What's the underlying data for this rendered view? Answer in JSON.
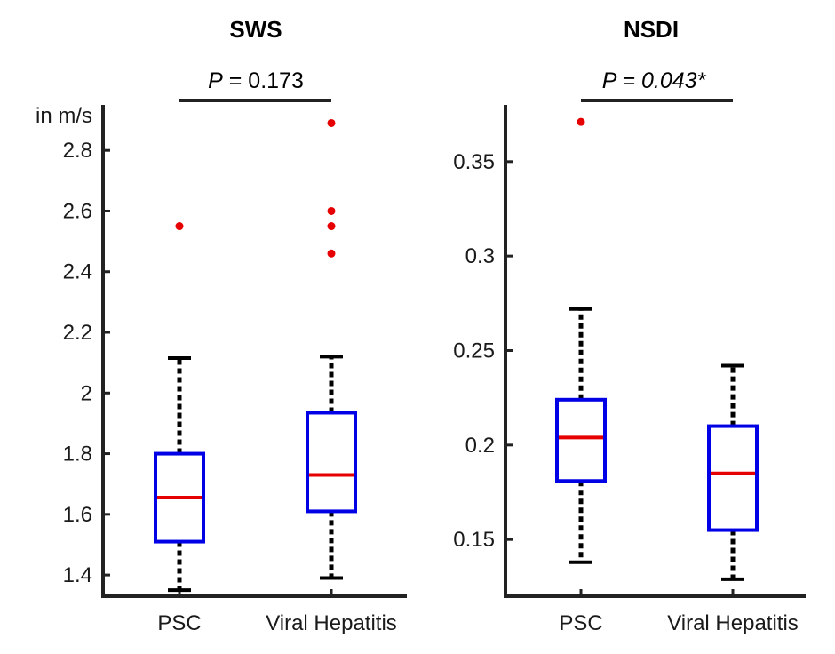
{
  "chart_data": [
    {
      "type": "box",
      "title": "SWS",
      "ylabel": "in m/s",
      "ylim": [
        1.33,
        2.95
      ],
      "yticks": [
        1.4,
        1.6,
        1.8,
        2,
        2.2,
        2.4,
        2.6,
        2.8
      ],
      "ytick_labels": [
        "1.4",
        "1.6",
        "1.8",
        "2",
        "2.2",
        "2.4",
        "2.6",
        "2.8"
      ],
      "categories": [
        "PSC",
        "Viral Hepatitis"
      ],
      "boxes": [
        {
          "name": "PSC",
          "whisker_low": 1.35,
          "q1": 1.51,
          "median": 1.655,
          "q3": 1.8,
          "whisker_high": 2.115,
          "outliers": [
            2.55
          ]
        },
        {
          "name": "Viral Hepatitis",
          "whisker_low": 1.39,
          "q1": 1.61,
          "median": 1.73,
          "q3": 1.935,
          "whisker_high": 2.12,
          "outliers": [
            2.46,
            2.55,
            2.6,
            2.89
          ]
        }
      ],
      "annotation": {
        "label": "P",
        "text": " = 0.173",
        "italic": false
      }
    },
    {
      "type": "box",
      "title": "NSDI",
      "ylabel": "",
      "ylim": [
        0.12,
        0.38
      ],
      "yticks": [
        0.15,
        0.2,
        0.25,
        0.3,
        0.35
      ],
      "ytick_labels": [
        "0.15",
        "0.2",
        "0.25",
        "0.3",
        "0.35"
      ],
      "categories": [
        "PSC",
        "Viral Hepatitis"
      ],
      "boxes": [
        {
          "name": "PSC",
          "whisker_low": 0.138,
          "q1": 0.181,
          "median": 0.204,
          "q3": 0.224,
          "whisker_high": 0.272,
          "outliers": [
            0.371
          ]
        },
        {
          "name": "Viral Hepatitis",
          "whisker_low": 0.129,
          "q1": 0.155,
          "median": 0.185,
          "q3": 0.21,
          "whisker_high": 0.242,
          "outliers": []
        }
      ],
      "annotation": {
        "label": "P",
        "text": " = 0.043*",
        "italic": true
      }
    }
  ],
  "colors": {
    "box": "#0000e6",
    "median": "#e60000",
    "whisker": "#000000",
    "outlier": "#e60000",
    "axis": "#222222"
  }
}
